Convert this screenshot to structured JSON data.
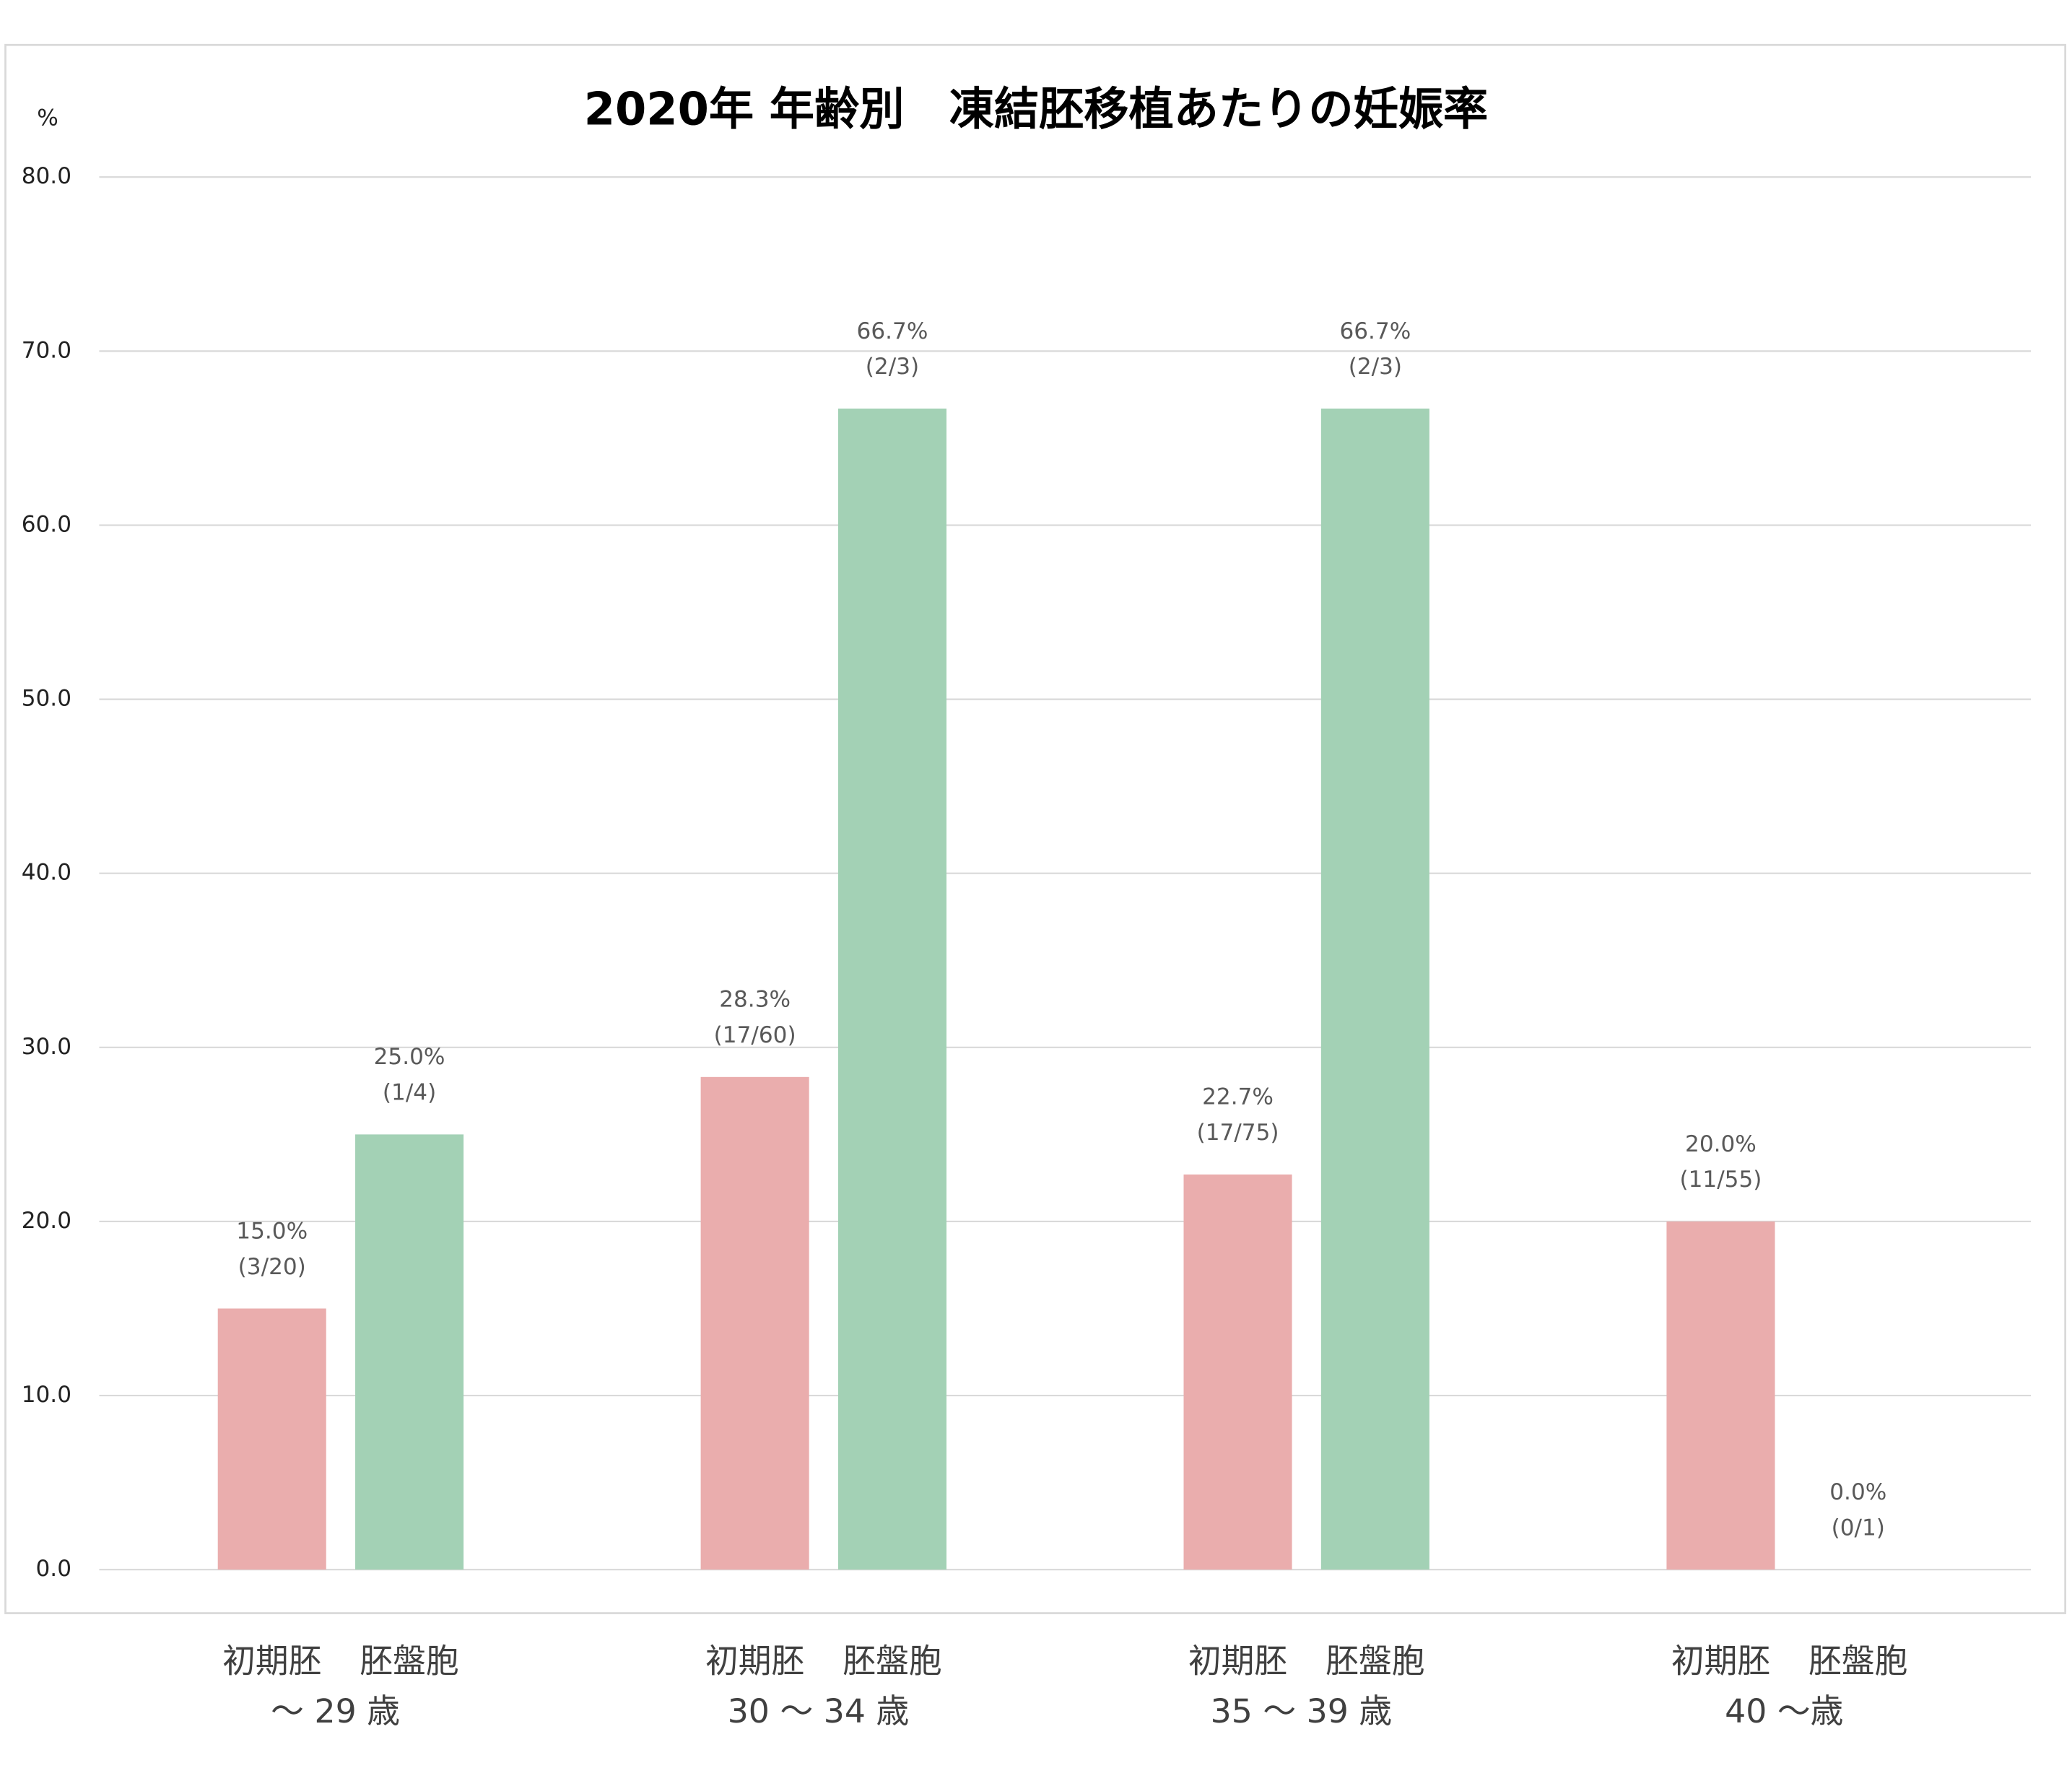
{
  "chart_data": {
    "type": "bar",
    "title": "2020年 年齢別　凍結胚移植あたりの妊娠率",
    "y_label": "%",
    "categories": [
      "～ 29 歳",
      "30 ～ 34 歳",
      "35 ～ 39 歳",
      "40 ～歳"
    ],
    "series": [
      {
        "name": "初期胚",
        "color": "#eaadad",
        "values": [
          15.0,
          28.3,
          22.7,
          20.0
        ],
        "value_labels": [
          "15.0%",
          "28.3%",
          "22.7%",
          "20.0%"
        ],
        "fractions": [
          "(3/20)",
          "(17/60)",
          "(17/75)",
          "(11/55)"
        ]
      },
      {
        "name": "胚盤胞",
        "color": "#a3d1b5",
        "values": [
          25.0,
          66.7,
          66.7,
          0.0
        ],
        "value_labels": [
          "25.0%",
          "66.7%",
          "66.7%",
          "0.0%"
        ],
        "fractions": [
          "(1/4)",
          "(2/3)",
          "(2/3)",
          "(0/1)"
        ]
      }
    ],
    "ylim": [
      0,
      80
    ],
    "yticks": [
      {
        "value": 0,
        "label": "0.0"
      },
      {
        "value": 10,
        "label": "10.0"
      },
      {
        "value": 20,
        "label": "20.0"
      },
      {
        "value": 30,
        "label": "30.0"
      },
      {
        "value": 40,
        "label": "40.0"
      },
      {
        "value": 50,
        "label": "50.0"
      },
      {
        "value": 60,
        "label": "60.0"
      },
      {
        "value": 70,
        "label": "70.0"
      },
      {
        "value": 80,
        "label": "80.0"
      }
    ],
    "grid": true
  }
}
